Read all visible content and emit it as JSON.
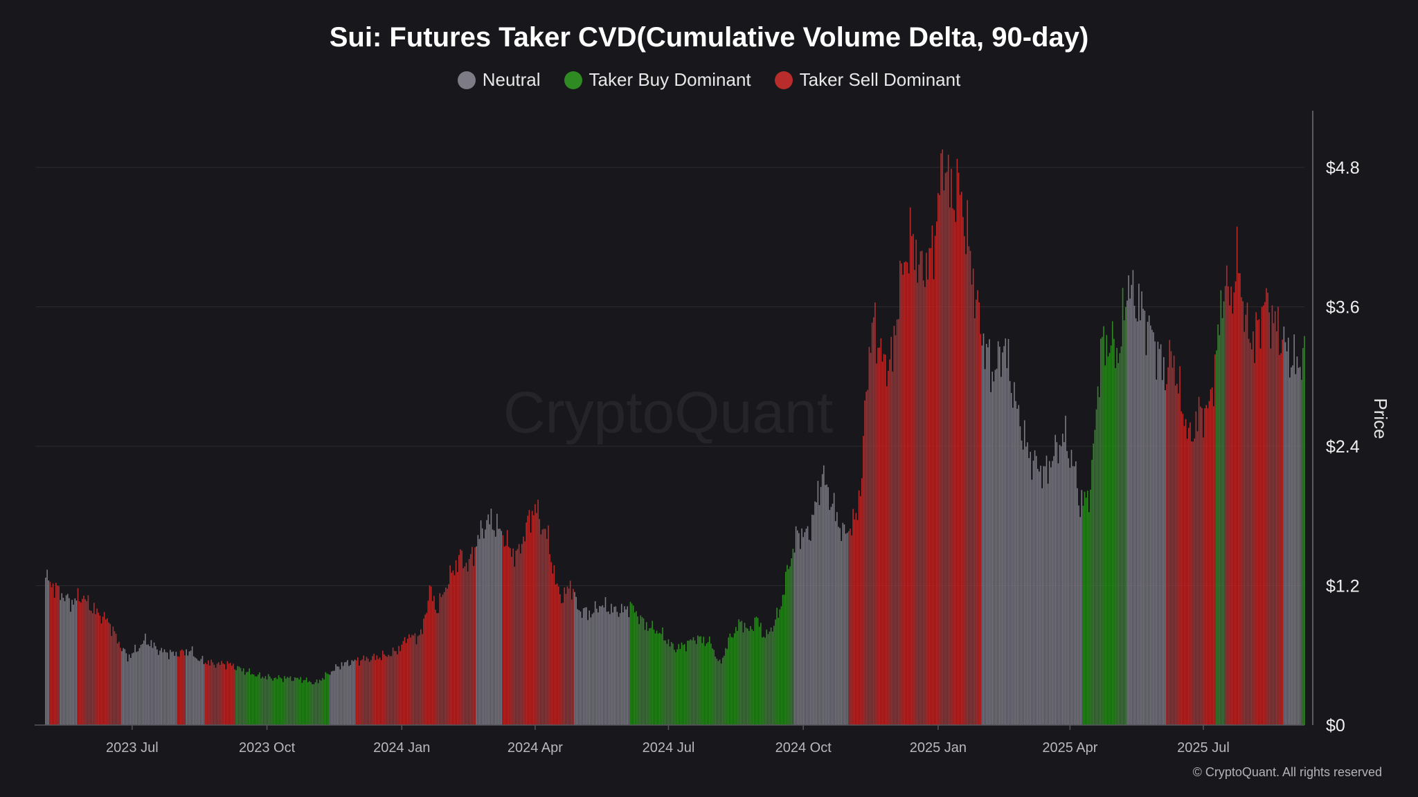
{
  "chart_data": {
    "type": "bar",
    "title": "Sui: Futures Taker CVD(Cumulative Volume Delta, 90-day)",
    "legend": [
      {
        "name": "Neutral",
        "color": "#7d7c86"
      },
      {
        "name": "Taker Buy Dominant",
        "color": "#2f8a24"
      },
      {
        "name": "Taker Sell Dominant",
        "color": "#b82c2c"
      }
    ],
    "ylabel": "Price",
    "y_axis_side": "right",
    "ylim": [
      0,
      5.3
    ],
    "y_ticks": [
      {
        "value": 0,
        "label": "$0"
      },
      {
        "value": 1.2,
        "label": "$1.2"
      },
      {
        "value": 2.4,
        "label": "$2.4"
      },
      {
        "value": 3.6,
        "label": "$3.6"
      },
      {
        "value": 4.8,
        "label": "$4.8"
      }
    ],
    "x_range": [
      "2023-05-03",
      "2025-09-08"
    ],
    "x_ticks": [
      {
        "date": "2023-07-01",
        "label": "2023 Jul"
      },
      {
        "date": "2023-10-01",
        "label": "2023 Oct"
      },
      {
        "date": "2024-01-01",
        "label": "2024 Jan"
      },
      {
        "date": "2024-04-01",
        "label": "2024 Apr"
      },
      {
        "date": "2024-07-01",
        "label": "2024 Jul"
      },
      {
        "date": "2024-10-01",
        "label": "2024 Oct"
      },
      {
        "date": "2025-01-01",
        "label": "2025 Jan"
      },
      {
        "date": "2025-04-01",
        "label": "2025 Apr"
      },
      {
        "date": "2025-07-01",
        "label": "2025 Jul"
      }
    ],
    "grid": "horizontal",
    "watermark": "CryptoQuant",
    "series_note": "Daily SUI price bars; color = CVD regime",
    "price_points": [
      [
        "2023-05-03",
        1.35
      ],
      [
        "2023-05-10",
        1.25
      ],
      [
        "2023-05-20",
        1.12
      ],
      [
        "2023-05-28",
        1.18
      ],
      [
        "2023-06-05",
        1.05
      ],
      [
        "2023-06-15",
        0.95
      ],
      [
        "2023-06-22",
        0.75
      ],
      [
        "2023-06-28",
        0.62
      ],
      [
        "2023-07-05",
        0.7
      ],
      [
        "2023-07-10",
        0.78
      ],
      [
        "2023-07-20",
        0.68
      ],
      [
        "2023-07-30",
        0.65
      ],
      [
        "2023-08-10",
        0.68
      ],
      [
        "2023-08-15",
        0.6
      ],
      [
        "2023-08-25",
        0.56
      ],
      [
        "2023-09-05",
        0.56
      ],
      [
        "2023-09-15",
        0.5
      ],
      [
        "2023-09-25",
        0.45
      ],
      [
        "2023-10-05",
        0.43
      ],
      [
        "2023-10-15",
        0.43
      ],
      [
        "2023-10-25",
        0.42
      ],
      [
        "2023-11-03",
        0.38
      ],
      [
        "2023-11-10",
        0.45
      ],
      [
        "2023-11-20",
        0.55
      ],
      [
        "2023-11-28",
        0.58
      ],
      [
        "2023-12-05",
        0.6
      ],
      [
        "2023-12-15",
        0.62
      ],
      [
        "2023-12-25",
        0.65
      ],
      [
        "2024-01-01",
        0.72
      ],
      [
        "2024-01-05",
        0.82
      ],
      [
        "2024-01-10",
        0.8
      ],
      [
        "2024-01-15",
        0.85
      ],
      [
        "2024-01-20",
        1.25
      ],
      [
        "2024-01-25",
        1.05
      ],
      [
        "2024-02-01",
        1.3
      ],
      [
        "2024-02-10",
        1.55
      ],
      [
        "2024-02-15",
        1.45
      ],
      [
        "2024-02-25",
        1.8
      ],
      [
        "2024-03-01",
        1.88
      ],
      [
        "2024-03-10",
        1.75
      ],
      [
        "2024-03-15",
        1.6
      ],
      [
        "2024-03-20",
        1.55
      ],
      [
        "2024-03-27",
        1.85
      ],
      [
        "2024-04-01",
        2.0
      ],
      [
        "2024-04-05",
        1.85
      ],
      [
        "2024-04-10",
        1.7
      ],
      [
        "2024-04-15",
        1.3
      ],
      [
        "2024-04-20",
        1.15
      ],
      [
        "2024-04-25",
        1.3
      ],
      [
        "2024-05-01",
        1.05
      ],
      [
        "2024-05-10",
        1.02
      ],
      [
        "2024-05-15",
        1.1
      ],
      [
        "2024-05-25",
        1.05
      ],
      [
        "2024-06-01",
        1.05
      ],
      [
        "2024-06-05",
        1.1
      ],
      [
        "2024-06-15",
        0.92
      ],
      [
        "2024-06-25",
        0.85
      ],
      [
        "2024-07-05",
        0.7
      ],
      [
        "2024-07-10",
        0.72
      ],
      [
        "2024-07-20",
        0.8
      ],
      [
        "2024-07-30",
        0.75
      ],
      [
        "2024-08-05",
        0.55
      ],
      [
        "2024-08-12",
        0.8
      ],
      [
        "2024-08-20",
        0.95
      ],
      [
        "2024-08-25",
        0.85
      ],
      [
        "2024-08-30",
        0.98
      ],
      [
        "2024-09-05",
        0.8
      ],
      [
        "2024-09-10",
        0.9
      ],
      [
        "2024-09-15",
        1.05
      ],
      [
        "2024-09-20",
        1.4
      ],
      [
        "2024-09-27",
        1.75
      ],
      [
        "2024-10-05",
        1.75
      ],
      [
        "2024-10-10",
        2.05
      ],
      [
        "2024-10-14",
        2.3
      ],
      [
        "2024-10-20",
        2.05
      ],
      [
        "2024-10-28",
        1.75
      ],
      [
        "2024-11-05",
        1.85
      ],
      [
        "2024-11-10",
        2.25
      ],
      [
        "2024-11-13",
        3.15
      ],
      [
        "2024-11-18",
        3.7
      ],
      [
        "2024-11-25",
        3.3
      ],
      [
        "2024-12-01",
        3.35
      ],
      [
        "2024-12-05",
        3.95
      ],
      [
        "2024-12-10",
        4.3
      ],
      [
        "2024-12-15",
        4.45
      ],
      [
        "2024-12-20",
        4.15
      ],
      [
        "2024-12-28",
        4.3
      ],
      [
        "2025-01-05",
        5.25
      ],
      [
        "2025-01-10",
        4.8
      ],
      [
        "2025-01-15",
        4.95
      ],
      [
        "2025-01-20",
        4.55
      ],
      [
        "2025-01-28",
        3.8
      ],
      [
        "2025-02-02",
        3.45
      ],
      [
        "2025-02-08",
        3.2
      ],
      [
        "2025-02-15",
        3.5
      ],
      [
        "2025-02-22",
        3.0
      ],
      [
        "2025-03-01",
        2.6
      ],
      [
        "2025-03-05",
        2.45
      ],
      [
        "2025-03-15",
        2.3
      ],
      [
        "2025-03-20",
        2.45
      ],
      [
        "2025-03-28",
        2.65
      ],
      [
        "2025-04-05",
        2.3
      ],
      [
        "2025-04-08",
        2.0
      ],
      [
        "2025-04-15",
        2.15
      ],
      [
        "2025-04-22",
        3.45
      ],
      [
        "2025-04-28",
        3.5
      ],
      [
        "2025-05-05",
        3.4
      ],
      [
        "2025-05-10",
        4.05
      ],
      [
        "2025-05-15",
        3.9
      ],
      [
        "2025-05-20",
        3.8
      ],
      [
        "2025-05-28",
        3.55
      ],
      [
        "2025-06-05",
        3.2
      ],
      [
        "2025-06-10",
        3.4
      ],
      [
        "2025-06-15",
        3.0
      ],
      [
        "2025-06-22",
        2.6
      ],
      [
        "2025-06-28",
        2.85
      ],
      [
        "2025-07-05",
        2.9
      ],
      [
        "2025-07-10",
        3.4
      ],
      [
        "2025-07-15",
        4.05
      ],
      [
        "2025-07-20",
        3.9
      ],
      [
        "2025-07-25",
        4.25
      ],
      [
        "2025-07-30",
        3.65
      ],
      [
        "2025-08-05",
        3.5
      ],
      [
        "2025-08-12",
        3.9
      ],
      [
        "2025-08-18",
        3.7
      ],
      [
        "2025-08-25",
        3.5
      ],
      [
        "2025-09-01",
        3.3
      ],
      [
        "2025-09-08",
        3.35
      ]
    ],
    "regimes": [
      {
        "start": "2023-05-03",
        "end": "2023-05-06",
        "state": "neutral"
      },
      {
        "start": "2023-05-06",
        "end": "2023-05-13",
        "state": "sell"
      },
      {
        "start": "2023-05-13",
        "end": "2023-05-25",
        "state": "neutral"
      },
      {
        "start": "2023-05-25",
        "end": "2023-06-24",
        "state": "sell"
      },
      {
        "start": "2023-06-24",
        "end": "2023-08-01",
        "state": "neutral"
      },
      {
        "start": "2023-08-01",
        "end": "2023-08-07",
        "state": "sell"
      },
      {
        "start": "2023-08-07",
        "end": "2023-08-20",
        "state": "neutral"
      },
      {
        "start": "2023-08-20",
        "end": "2023-09-10",
        "state": "sell"
      },
      {
        "start": "2023-09-10",
        "end": "2023-11-01",
        "state": "buy"
      },
      {
        "start": "2023-11-01",
        "end": "2023-11-13",
        "state": "buy"
      },
      {
        "start": "2023-11-13",
        "end": "2023-12-01",
        "state": "neutral"
      },
      {
        "start": "2023-12-01",
        "end": "2024-02-21",
        "state": "sell"
      },
      {
        "start": "2024-02-21",
        "end": "2024-03-10",
        "state": "neutral"
      },
      {
        "start": "2024-03-10",
        "end": "2024-04-28",
        "state": "sell"
      },
      {
        "start": "2024-04-28",
        "end": "2024-06-05",
        "state": "neutral"
      },
      {
        "start": "2024-06-05",
        "end": "2024-09-25",
        "state": "buy"
      },
      {
        "start": "2024-09-25",
        "end": "2024-11-01",
        "state": "neutral"
      },
      {
        "start": "2024-11-01",
        "end": "2025-01-31",
        "state": "sell"
      },
      {
        "start": "2025-01-31",
        "end": "2025-04-10",
        "state": "neutral"
      },
      {
        "start": "2025-04-10",
        "end": "2025-05-10",
        "state": "buy"
      },
      {
        "start": "2025-05-10",
        "end": "2025-06-06",
        "state": "neutral"
      },
      {
        "start": "2025-06-06",
        "end": "2025-07-10",
        "state": "sell"
      },
      {
        "start": "2025-07-10",
        "end": "2025-07-16",
        "state": "buy"
      },
      {
        "start": "2025-07-16",
        "end": "2025-08-25",
        "state": "sell"
      },
      {
        "start": "2025-08-25",
        "end": "2025-09-06",
        "state": "neutral"
      },
      {
        "start": "2025-09-06",
        "end": "2025-09-08",
        "state": "buy"
      }
    ]
  },
  "copyright": "© CryptoQuant. All rights reserved"
}
